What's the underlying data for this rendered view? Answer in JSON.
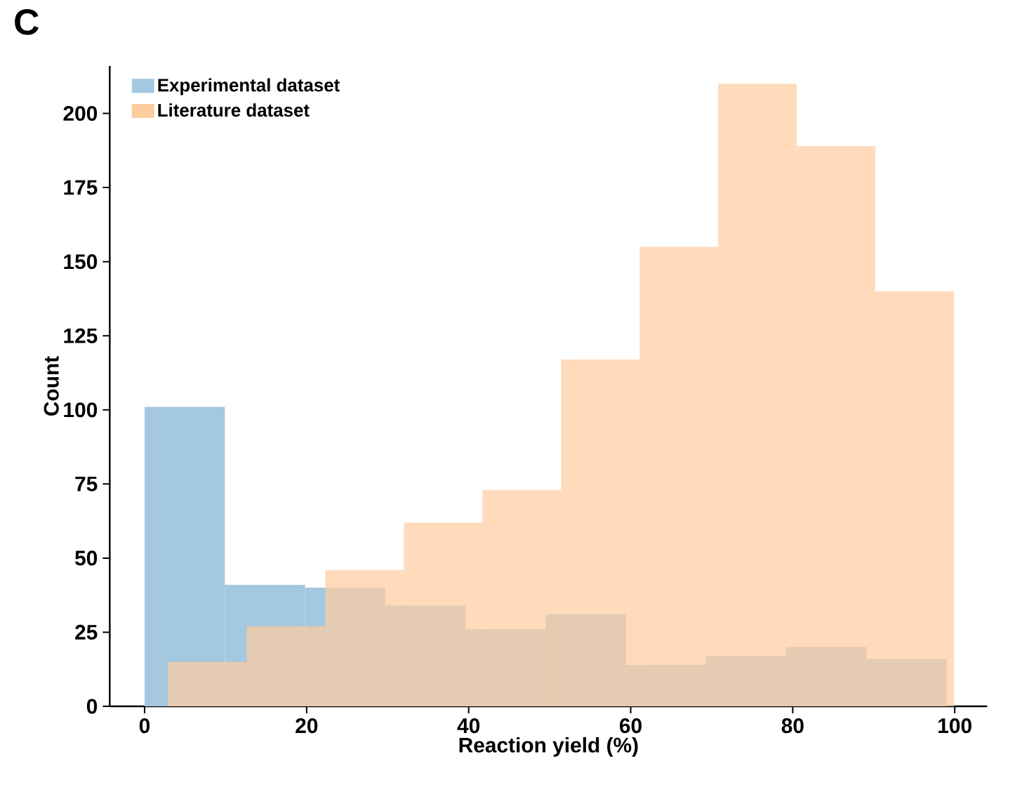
{
  "chart_data": {
    "type": "histogram",
    "xlabel": "Reaction yield (%)",
    "ylabel": "Count",
    "annotations": [
      "C"
    ],
    "bins": [
      0,
      9.9,
      19.8,
      29.7,
      39.6,
      49.5,
      59.4,
      69.3,
      79.2,
      89.1,
      99
    ],
    "series": [
      {
        "name": "Experimental dataset",
        "color": "#a5c8e1",
        "values": [
          101,
          41,
          40,
          34,
          26,
          31,
          14,
          17,
          20,
          16
        ]
      },
      {
        "name": "Literature dataset",
        "color": "#ffcc9e",
        "bins": [
          2.9,
          12.6,
          22.3,
          32,
          41.7,
          51.4,
          61.1,
          70.8,
          80.5,
          90.2,
          99.9
        ],
        "values": [
          15,
          27,
          46,
          62,
          73,
          117,
          155,
          210,
          189,
          140
        ]
      }
    ],
    "xlim": [
      -4.3,
      104
    ],
    "ylim": [
      0,
      216
    ],
    "xticks": [
      0,
      20,
      40,
      60,
      80,
      100
    ],
    "yticks": [
      0,
      25,
      50,
      75,
      100,
      125,
      150,
      175,
      200
    ],
    "legend": "top left"
  }
}
